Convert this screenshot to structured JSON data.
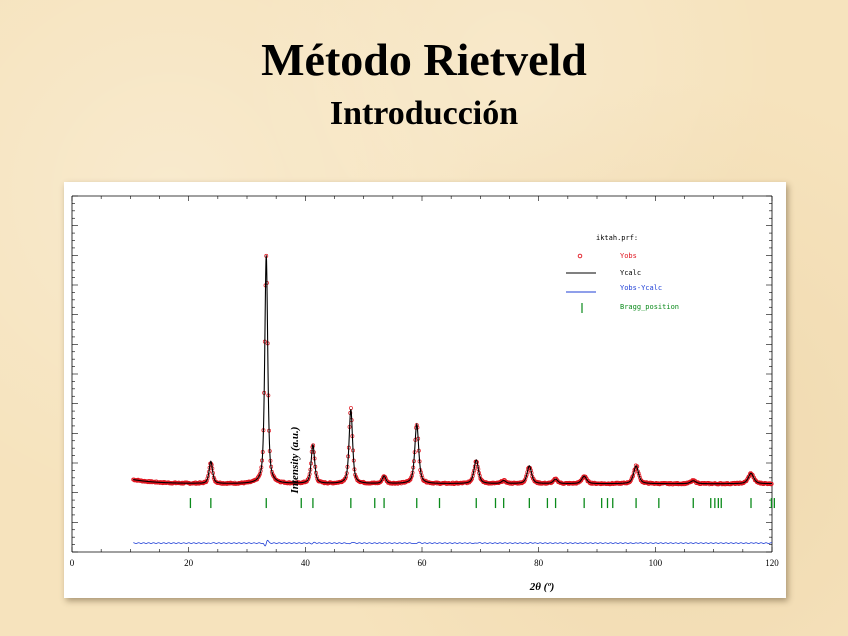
{
  "slide": {
    "title": "Método Rietveld",
    "subtitle": "Introducción"
  },
  "chart_data": {
    "type": "line",
    "xlabel": "2θ (º)",
    "ylabel": "Intensity (a.u.)",
    "xlim": [
      0,
      120
    ],
    "ylim": [
      -20,
      100
    ],
    "xticks": [
      0,
      20,
      40,
      60,
      80,
      100,
      120
    ],
    "colors": {
      "obs": "#e0141e",
      "calc": "#000000",
      "diff": "#1f3fd6",
      "bragg": "#0a8a1a"
    },
    "legend": {
      "title": "iktah.prf:",
      "entries": [
        "Yobs",
        "Ycalc",
        "Yobs-Ycalc",
        "Bragg_position"
      ],
      "placement": "top-right"
    },
    "background": 3.0,
    "peaks": [
      {
        "x": 23.8,
        "height": 7.5,
        "width": 0.35
      },
      {
        "x": 33.3,
        "height": 77,
        "width": 0.3
      },
      {
        "x": 41.3,
        "height": 13,
        "width": 0.35
      },
      {
        "x": 47.8,
        "height": 25,
        "width": 0.35
      },
      {
        "x": 53.5,
        "height": 2.5,
        "width": 0.35
      },
      {
        "x": 59.1,
        "height": 20,
        "width": 0.4
      },
      {
        "x": 69.3,
        "height": 8,
        "width": 0.45
      },
      {
        "x": 74.0,
        "height": 1.0,
        "width": 0.45
      },
      {
        "x": 78.4,
        "height": 6,
        "width": 0.45
      },
      {
        "x": 82.9,
        "height": 1.5,
        "width": 0.45
      },
      {
        "x": 87.8,
        "height": 2.5,
        "width": 0.5
      },
      {
        "x": 96.7,
        "height": 6,
        "width": 0.5
      },
      {
        "x": 106.5,
        "height": 1.0,
        "width": 0.55
      },
      {
        "x": 116.4,
        "height": 3.5,
        "width": 0.55
      }
    ],
    "bragg_positions": [
      20.3,
      23.8,
      33.3,
      39.3,
      41.3,
      47.8,
      51.9,
      53.5,
      59.1,
      63.0,
      69.3,
      72.6,
      74.0,
      78.4,
      81.5,
      82.9,
      87.8,
      90.8,
      91.8,
      92.7,
      96.7,
      100.6,
      106.5,
      109.5,
      110.2,
      110.8,
      111.3,
      116.4,
      119.9,
      120.4
    ],
    "bragg_y": -3.5,
    "diff_baseline": -17
  }
}
